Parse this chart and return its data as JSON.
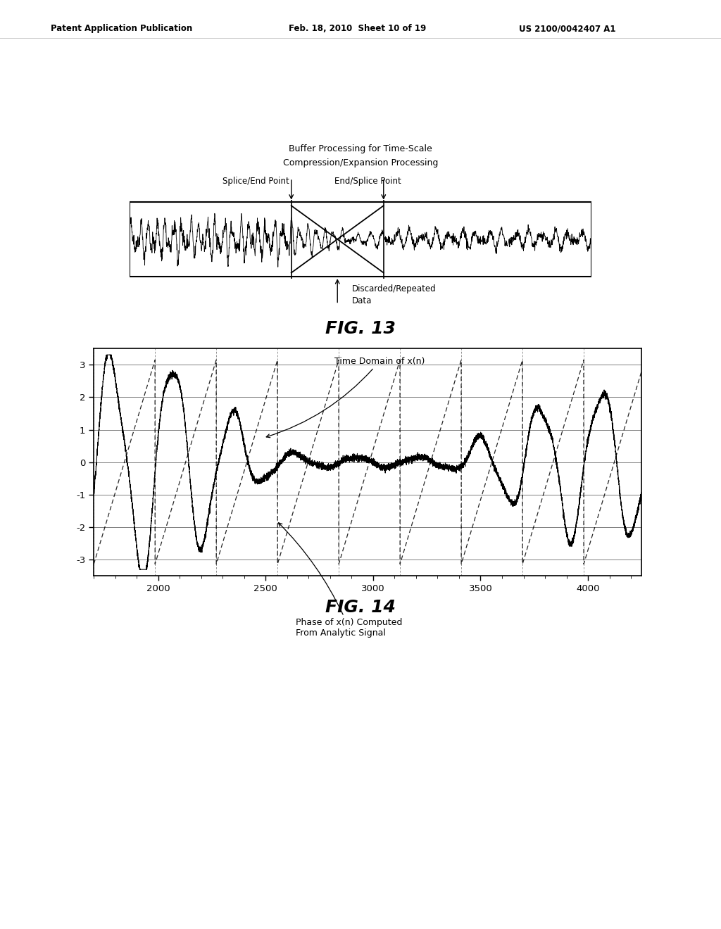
{
  "page_header_left": "Patent Application Publication",
  "page_header_mid": "Feb. 18, 2010  Sheet 10 of 19",
  "page_header_right": "US 2100/0042407 A1",
  "fig13_title_line1": "Buffer Processing for Time-Scale",
  "fig13_title_line2": "Compression/Expansion Processing",
  "fig13_label1": "Splice/End Point",
  "fig13_label2": "End/Splice Point",
  "fig13_label3_line1": "Discarded/Repeated",
  "fig13_label3_line2": "Data",
  "fig13_caption": "FIG. 13",
  "fig14_caption": "FIG. 14",
  "fig14_label_time": "Time Domain of x(n)",
  "fig14_label_phase_line1": "Phase of x(n) Computed",
  "fig14_label_phase_line2": "From Analytic Signal",
  "fig14_xlim": [
    1700,
    4250
  ],
  "fig14_ylim": [
    -3.5,
    3.5
  ],
  "fig14_yticks": [
    -3,
    -2,
    -1,
    0,
    1,
    2,
    3
  ],
  "fig14_xticks": [
    2000,
    2500,
    3000,
    3500,
    4000
  ],
  "background_color": "#ffffff",
  "line_color": "#000000"
}
